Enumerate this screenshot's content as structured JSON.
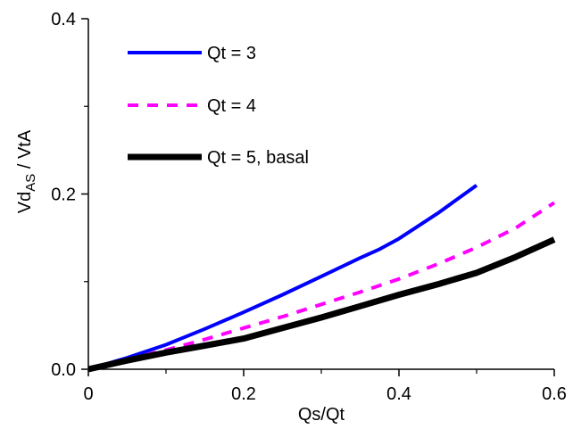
{
  "chart_data": {
    "type": "line",
    "xlabel": "Qs/Qt",
    "ylabel": {
      "main": "Vd",
      "sub": "AS",
      "rest": " / VtA"
    },
    "xlim": [
      0,
      0.6
    ],
    "ylim": [
      0,
      0.4
    ],
    "x_ticks": [
      0,
      0.2,
      0.4,
      0.6
    ],
    "x_tick_labels": [
      "0",
      "0.2",
      "0.4",
      "0.6"
    ],
    "x_minor_ticks": [
      0.1,
      0.3,
      0.5
    ],
    "y_ticks": [
      0,
      0.2,
      0.4
    ],
    "y_tick_labels": [
      "0.0",
      "0.2",
      "0.4"
    ],
    "y_minor_ticks": [
      0.1,
      0.3
    ],
    "grid": false,
    "legend_position": "top-left",
    "series": [
      {
        "name": "Qt = 3",
        "color": "#0000ff",
        "dash": "solid",
        "width": "medium",
        "x": [
          0,
          0.05,
          0.1,
          0.15,
          0.2,
          0.25,
          0.3,
          0.35,
          0.375,
          0.4,
          0.45,
          0.5
        ],
        "y": [
          0,
          0.013,
          0.028,
          0.046,
          0.065,
          0.085,
          0.106,
          0.127,
          0.137,
          0.149,
          0.178,
          0.21
        ]
      },
      {
        "name": "Qt = 4",
        "color": "#ff00ff",
        "dash": "dashed",
        "width": "medium",
        "x": [
          0,
          0.05,
          0.1,
          0.15,
          0.2,
          0.25,
          0.3,
          0.35,
          0.4,
          0.45,
          0.5,
          0.55,
          0.6
        ],
        "y": [
          0,
          0.011,
          0.022,
          0.034,
          0.047,
          0.06,
          0.074,
          0.088,
          0.103,
          0.12,
          0.139,
          0.161,
          0.19
        ]
      },
      {
        "name": "Qt = 5, basal",
        "color": "#000000",
        "dash": "solid",
        "width": "thick",
        "x": [
          0,
          0.05,
          0.1,
          0.15,
          0.2,
          0.25,
          0.3,
          0.35,
          0.4,
          0.45,
          0.5,
          0.55,
          0.6
        ],
        "y": [
          0,
          0.01,
          0.019,
          0.027,
          0.035,
          0.047,
          0.059,
          0.072,
          0.085,
          0.097,
          0.11,
          0.128,
          0.148
        ]
      }
    ]
  }
}
